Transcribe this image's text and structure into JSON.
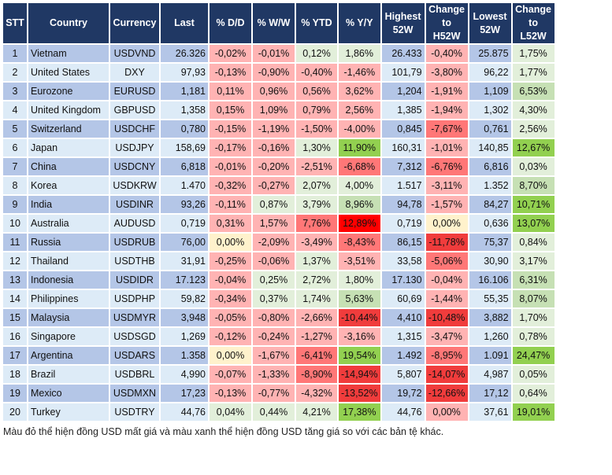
{
  "headers": [
    "STT",
    "Country",
    "Currency",
    "Last",
    "% D/D",
    "% W/W",
    "% YTD",
    "% Y/Y",
    "Highest 52W",
    "Change to H52W",
    "Lowest 52W",
    "Change to L52W"
  ],
  "color_legend": {
    "r1": "#ffb3b3",
    "r2": "#ff7777",
    "r3": "#f03c3c",
    "r4": "#ff0000",
    "g1": "#e2efda",
    "g2": "#c6e0b4",
    "g3": "#92d050",
    "y": "#fff2cc",
    "header": "#203864",
    "row_odd": "#b4c6e7",
    "row_even": "#ddebf7"
  },
  "rows": [
    {
      "stt": "1",
      "country": "Vietnam",
      "currency": "USDVND",
      "last": "26.326",
      "dd": "-0,02%",
      "ww": "-0,01%",
      "ytd": "0,12%",
      "yy": "1,86%",
      "high": "26.433",
      "chh": "-0,40%",
      "low": "25.875",
      "chl": "1,75%",
      "colors": [
        "r1",
        "r1",
        "g1",
        "g1",
        "r1",
        "g1"
      ]
    },
    {
      "stt": "2",
      "country": "United States",
      "currency": "DXY",
      "last": "97,93",
      "dd": "-0,13%",
      "ww": "-0,90%",
      "ytd": "-0,40%",
      "yy": "-1,46%",
      "high": "101,79",
      "chh": "-3,80%",
      "low": "96,22",
      "chl": "1,77%",
      "colors": [
        "r1",
        "r1",
        "r1",
        "r1",
        "r1",
        "g1"
      ]
    },
    {
      "stt": "3",
      "country": "Eurozone",
      "currency": "EURUSD",
      "last": "1,181",
      "dd": "0,11%",
      "ww": "0,96%",
      "ytd": "0,56%",
      "yy": "3,62%",
      "high": "1,204",
      "chh": "-1,91%",
      "low": "1,109",
      "chl": "6,53%",
      "colors": [
        "r1",
        "r1",
        "r1",
        "r1",
        "r1",
        "g2"
      ]
    },
    {
      "stt": "4",
      "country": "United Kingdom",
      "currency": "GBPUSD",
      "last": "1,358",
      "dd": "0,15%",
      "ww": "1,09%",
      "ytd": "0,79%",
      "yy": "2,56%",
      "high": "1,385",
      "chh": "-1,94%",
      "low": "1,302",
      "chl": "4,30%",
      "colors": [
        "r1",
        "r1",
        "r1",
        "r1",
        "r1",
        "g1"
      ]
    },
    {
      "stt": "5",
      "country": "Switzerland",
      "currency": "USDCHF",
      "last": "0,780",
      "dd": "-0,15%",
      "ww": "-1,19%",
      "ytd": "-1,50%",
      "yy": "-4,00%",
      "high": "0,845",
      "chh": "-7,67%",
      "low": "0,761",
      "chl": "2,56%",
      "colors": [
        "r1",
        "r1",
        "r1",
        "r1",
        "r2",
        "g1"
      ]
    },
    {
      "stt": "6",
      "country": "Japan",
      "currency": "USDJPY",
      "last": "158,69",
      "dd": "-0,17%",
      "ww": "-0,16%",
      "ytd": "1,30%",
      "yy": "11,90%",
      "high": "160,31",
      "chh": "-1,01%",
      "low": "140,85",
      "chl": "12,67%",
      "colors": [
        "r1",
        "r1",
        "g1",
        "g3",
        "r1",
        "g3"
      ]
    },
    {
      "stt": "7",
      "country": "China",
      "currency": "USDCNY",
      "last": "6,818",
      "dd": "-0,01%",
      "ww": "-0,20%",
      "ytd": "-2,51%",
      "yy": "-6,68%",
      "high": "7,312",
      "chh": "-6,76%",
      "low": "6,816",
      "chl": "0,03%",
      "colors": [
        "r1",
        "r1",
        "r1",
        "r2",
        "r2",
        "g1"
      ]
    },
    {
      "stt": "8",
      "country": "Korea",
      "currency": "USDKRW",
      "last": "1.470",
      "dd": "-0,32%",
      "ww": "-0,27%",
      "ytd": "2,07%",
      "yy": "4,00%",
      "high": "1.517",
      "chh": "-3,11%",
      "low": "1.352",
      "chl": "8,70%",
      "colors": [
        "r1",
        "r1",
        "g1",
        "g1",
        "r1",
        "g2"
      ]
    },
    {
      "stt": "9",
      "country": "India",
      "currency": "USDINR",
      "last": "93,26",
      "dd": "-0,11%",
      "ww": "0,87%",
      "ytd": "3,79%",
      "yy": "8,96%",
      "high": "94,78",
      "chh": "-1,57%",
      "low": "84,27",
      "chl": "10,71%",
      "colors": [
        "r1",
        "g1",
        "g1",
        "g2",
        "r1",
        "g3"
      ]
    },
    {
      "stt": "10",
      "country": "Australia",
      "currency": "AUDUSD",
      "last": "0,719",
      "dd": "0,31%",
      "ww": "1,57%",
      "ytd": "7,76%",
      "yy": "12,89%",
      "high": "0,719",
      "chh": "0,00%",
      "low": "0,636",
      "chl": "13,07%",
      "colors": [
        "r1",
        "r1",
        "r2",
        "r4",
        "y",
        "g3"
      ]
    },
    {
      "stt": "11",
      "country": "Russia",
      "currency": "USDRUB",
      "last": "76,00",
      "dd": "0,00%",
      "ww": "-2,09%",
      "ytd": "-3,49%",
      "yy": "-8,43%",
      "high": "86,15",
      "chh": "-11,78%",
      "low": "75,37",
      "chl": "0,84%",
      "colors": [
        "y",
        "r1",
        "r1",
        "r2",
        "r3",
        "g1"
      ]
    },
    {
      "stt": "12",
      "country": "Thailand",
      "currency": "USDTHB",
      "last": "31,91",
      "dd": "-0,25%",
      "ww": "-0,06%",
      "ytd": "1,37%",
      "yy": "-3,51%",
      "high": "33,58",
      "chh": "-5,06%",
      "low": "30,90",
      "chl": "3,17%",
      "colors": [
        "r1",
        "r1",
        "g1",
        "r1",
        "r2",
        "g1"
      ]
    },
    {
      "stt": "13",
      "country": "Indonesia",
      "currency": "USDIDR",
      "last": "17.123",
      "dd": "-0,04%",
      "ww": "0,25%",
      "ytd": "2,72%",
      "yy": "1,80%",
      "high": "17.130",
      "chh": "-0,04%",
      "low": "16.106",
      "chl": "6,31%",
      "colors": [
        "r1",
        "g1",
        "g1",
        "g1",
        "r1",
        "g2"
      ]
    },
    {
      "stt": "14",
      "country": "Philippines",
      "currency": "USDPHP",
      "last": "59,82",
      "dd": "-0,34%",
      "ww": "0,37%",
      "ytd": "1,74%",
      "yy": "5,63%",
      "high": "60,69",
      "chh": "-1,44%",
      "low": "55,35",
      "chl": "8,07%",
      "colors": [
        "r1",
        "g1",
        "g1",
        "g2",
        "r1",
        "g2"
      ]
    },
    {
      "stt": "15",
      "country": "Malaysia",
      "currency": "USDMYR",
      "last": "3,948",
      "dd": "-0,05%",
      "ww": "-0,80%",
      "ytd": "-2,66%",
      "yy": "-10,44%",
      "high": "4,410",
      "chh": "-10,48%",
      "low": "3,882",
      "chl": "1,70%",
      "colors": [
        "r1",
        "r1",
        "r1",
        "r3",
        "r3",
        "g1"
      ]
    },
    {
      "stt": "16",
      "country": "Singapore",
      "currency": "USDSGD",
      "last": "1,269",
      "dd": "-0,12%",
      "ww": "-0,24%",
      "ytd": "-1,27%",
      "yy": "-3,16%",
      "high": "1,315",
      "chh": "-3,47%",
      "low": "1,260",
      "chl": "0,78%",
      "colors": [
        "r1",
        "r1",
        "r1",
        "r1",
        "r1",
        "g1"
      ]
    },
    {
      "stt": "17",
      "country": "Argentina",
      "currency": "USDARS",
      "last": "1.358",
      "dd": "0,00%",
      "ww": "-1,67%",
      "ytd": "-6,41%",
      "yy": "19,54%",
      "high": "1.492",
      "chh": "-8,95%",
      "low": "1.091",
      "chl": "24,47%",
      "colors": [
        "y",
        "r1",
        "r2",
        "g3",
        "r2",
        "g3"
      ]
    },
    {
      "stt": "18",
      "country": "Brazil",
      "currency": "USDBRL",
      "last": "4,990",
      "dd": "-0,07%",
      "ww": "-1,33%",
      "ytd": "-8,90%",
      "yy": "-14,94%",
      "high": "5,807",
      "chh": "-14,07%",
      "low": "4,987",
      "chl": "0,05%",
      "colors": [
        "r1",
        "r1",
        "r2",
        "r3",
        "r3",
        "g1"
      ]
    },
    {
      "stt": "19",
      "country": "Mexico",
      "currency": "USDMXN",
      "last": "17,23",
      "dd": "-0,13%",
      "ww": "-0,77%",
      "ytd": "-4,32%",
      "yy": "-13,52%",
      "high": "19,72",
      "chh": "-12,66%",
      "low": "17,12",
      "chl": "0,64%",
      "colors": [
        "r1",
        "r1",
        "r1",
        "r3",
        "r3",
        "g1"
      ]
    },
    {
      "stt": "20",
      "country": "Turkey",
      "currency": "USDTRY",
      "last": "44,76",
      "dd": "0,04%",
      "ww": "0,44%",
      "ytd": "4,21%",
      "yy": "17,38%",
      "high": "44,76",
      "chh": "0,00%",
      "low": "37,61",
      "chl": "19,01%",
      "colors": [
        "g1",
        "g1",
        "g1",
        "g3",
        "r1",
        "g3"
      ]
    }
  ],
  "footnote": "Màu đỏ thể hiện đồng USD mất giá và màu xanh thể hiện đồng USD tăng giá so với các bản tệ khác."
}
